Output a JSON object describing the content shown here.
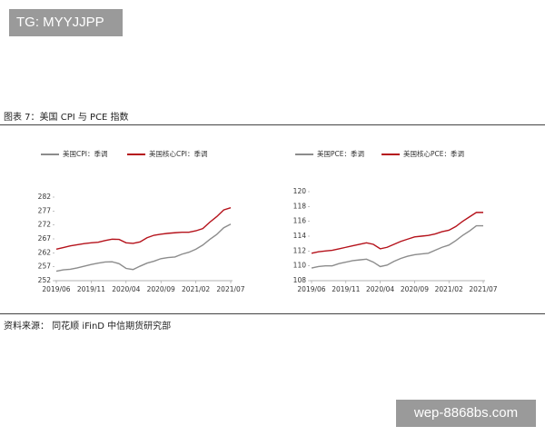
{
  "watermark_top": "TG: MYYJJPP",
  "figure_title": "图表 7：美国 CPI 与 PCE 指数",
  "source": "资料来源： 同花顺 iFinD 中信期货研究部",
  "watermark_bottom": "wep-8868bs.com",
  "chart_data": [
    {
      "type": "line",
      "categories": [
        "2019/06",
        null,
        null,
        null,
        null,
        "2019/11",
        null,
        null,
        null,
        null,
        "2020/04",
        null,
        null,
        null,
        null,
        "2020/09",
        null,
        null,
        null,
        null,
        "2021/02",
        null,
        null,
        null,
        null,
        "2021/07"
      ],
      "series": [
        {
          "name": "美国CPI：季调",
          "color": "#8c8c8c",
          "values": [
            255.4,
            255.9,
            256.1,
            256.6,
            257.2,
            257.8,
            258.3,
            258.7,
            258.8,
            258.1,
            256.4,
            256.0,
            257.2,
            258.3,
            259.0,
            259.9,
            260.3,
            260.5,
            261.5,
            262.2,
            263.3,
            264.8,
            266.8,
            268.6,
            271.0,
            272.3
          ]
        },
        {
          "name": "美国核心CPI：季调",
          "color": "#b5121b",
          "values": [
            263.3,
            263.9,
            264.5,
            264.9,
            265.3,
            265.6,
            265.8,
            266.4,
            266.9,
            266.8,
            265.6,
            265.4,
            265.9,
            267.4,
            268.3,
            268.7,
            269.0,
            269.2,
            269.4,
            269.4,
            269.9,
            270.7,
            273.0,
            275.0,
            277.4,
            278.2
          ]
        }
      ],
      "ylim": [
        252,
        282
      ],
      "yticks": [
        252,
        257,
        262,
        267,
        272,
        277,
        282
      ]
    },
    {
      "type": "line",
      "categories": [
        "2019/06",
        null,
        null,
        null,
        null,
        "2019/11",
        null,
        null,
        null,
        null,
        "2020/04",
        null,
        null,
        null,
        null,
        "2020/09",
        null,
        null,
        null,
        null,
        "2021/02",
        null,
        null,
        null,
        null,
        "2021/07"
      ],
      "series": [
        {
          "name": "美国PCE：季调",
          "color": "#8c8c8c",
          "values": [
            109.7,
            109.9,
            110.0,
            110.0,
            110.3,
            110.5,
            110.7,
            110.8,
            110.9,
            110.5,
            109.9,
            110.1,
            110.6,
            111.0,
            111.3,
            111.5,
            111.6,
            111.7,
            112.1,
            112.5,
            112.8,
            113.4,
            114.1,
            114.7,
            115.4,
            115.4
          ]
        },
        {
          "name": "美国核心PCE：季调",
          "color": "#b5121b",
          "values": [
            111.7,
            111.9,
            112.0,
            112.1,
            112.3,
            112.5,
            112.7,
            112.9,
            113.1,
            112.9,
            112.3,
            112.5,
            112.9,
            113.3,
            113.6,
            113.9,
            114.0,
            114.1,
            114.3,
            114.6,
            114.8,
            115.3,
            116.0,
            116.6,
            117.2,
            117.2
          ]
        }
      ],
      "ylim": [
        108,
        120
      ],
      "yticks": [
        108,
        110,
        112,
        114,
        116,
        118,
        120
      ]
    }
  ]
}
